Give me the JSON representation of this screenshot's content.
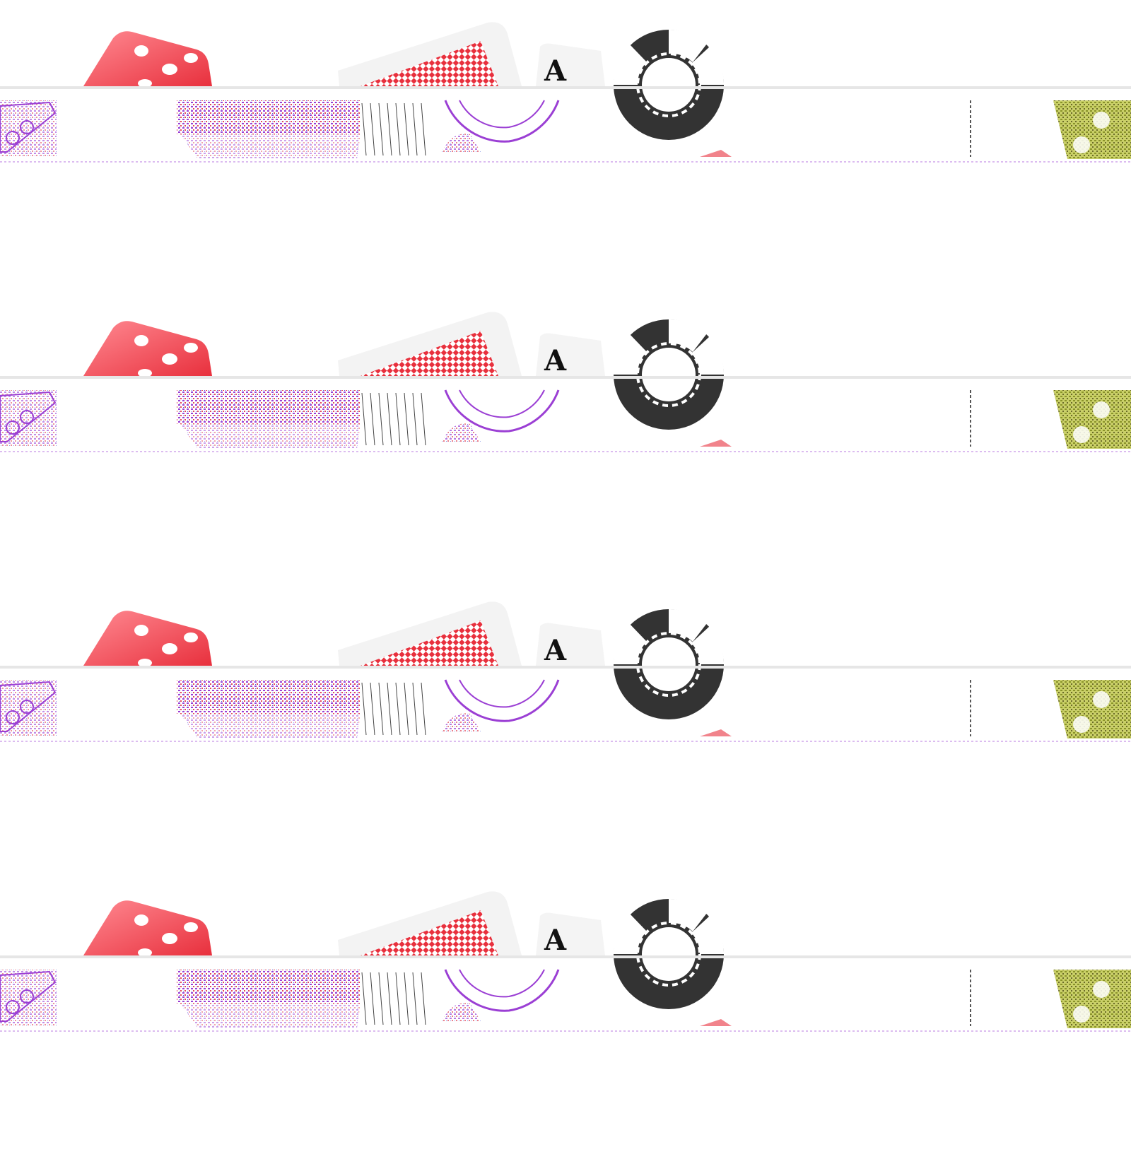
{
  "banner": {
    "repeat_count": 4,
    "colors": {
      "background": "#ffffff",
      "dice_red": "#f14c55",
      "dice_pip": "#ffffff",
      "card_back_red": "#e8303d",
      "card_face": "#f5f5f5",
      "chip_dark": "#333333",
      "chip_light": "#ffffff",
      "glitch_purple": "#9b3fd4",
      "glitch_olive": "#a8b53a"
    },
    "icons": [
      "red-dice-icon",
      "card-back-icon",
      "ace-card-icon",
      "poker-chip-icon"
    ],
    "ace_card": {
      "rank": "A"
    }
  }
}
